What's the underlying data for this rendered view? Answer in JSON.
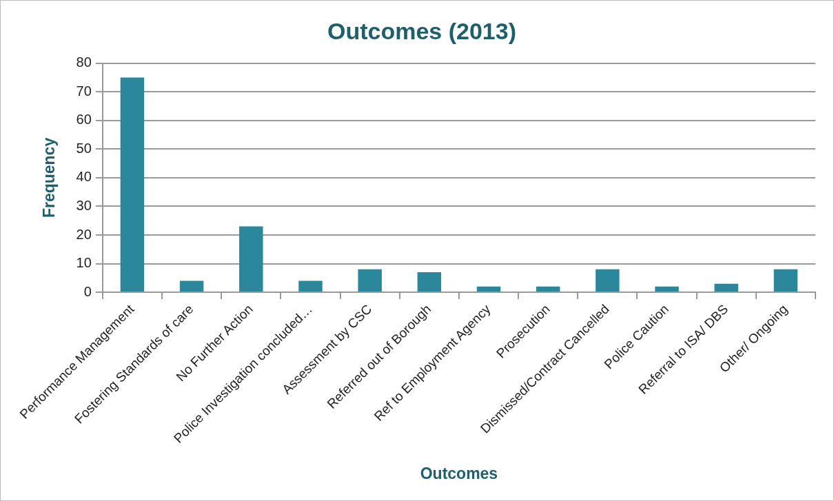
{
  "chart_data": {
    "type": "bar",
    "title": "Outcomes (2013)",
    "xlabel": "Outcomes",
    "ylabel": "Frequency",
    "categories": [
      "Performance Management",
      "Fostering Standards of care",
      "No Further Action",
      "Police Investigation concluded…",
      "Assessment by CSC",
      "Referred out of Borough",
      "Ref to Employment Agency",
      "Prosecution",
      "Dismissed/Contract Cancelled",
      "Police Caution",
      "Referral to ISA/ DBS",
      "Other/ Ongoing"
    ],
    "values": [
      75,
      4,
      23,
      4,
      8,
      7,
      2,
      2,
      8,
      2,
      3,
      8
    ],
    "color": "#2b879b",
    "ylim": [
      0,
      80
    ],
    "yticks": [
      0,
      10,
      20,
      30,
      40,
      50,
      60,
      70,
      80
    ],
    "grid": "y",
    "legend": false
  }
}
